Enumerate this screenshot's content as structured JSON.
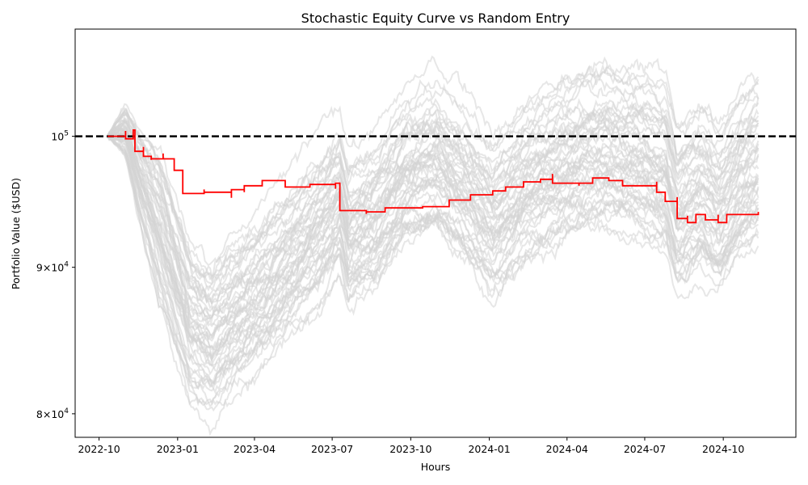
{
  "chart_data": {
    "type": "line",
    "title": "Stochastic Equity Curve vs Random Entry",
    "xlabel": "Hours",
    "ylabel": "Portfolio Value ($USD)",
    "yscale": "log",
    "ylim": [
      78500,
      109000
    ],
    "xlim": [
      "2022-09-03",
      "2024-12-25"
    ],
    "grid": false,
    "x_ticks": [
      "2022-10",
      "2023-01",
      "2023-04",
      "2023-07",
      "2023-10",
      "2024-01",
      "2024-04",
      "2024-07",
      "2024-10"
    ],
    "y_ticks": [
      {
        "value": 80000,
        "label_base": "8",
        "label_exp": "4"
      },
      {
        "value": 90000,
        "label_base": "9",
        "label_exp": "4"
      },
      {
        "value": 100000,
        "label_base": "10",
        "label_exp": "5"
      }
    ],
    "reference_line": {
      "value": 100000,
      "style": "dashed",
      "color": "#000000"
    },
    "colors": {
      "strategy": "#ff0000",
      "random": "#d3d3d3"
    },
    "series": [
      {
        "role": "strategy",
        "color": "#ff0000",
        "points": [
          [
            "2022-10-11",
            100000
          ],
          [
            "2022-11-01",
            99800
          ],
          [
            "2022-11-10",
            100500
          ],
          [
            "2022-11-12",
            98800
          ],
          [
            "2022-11-22",
            98400
          ],
          [
            "2022-12-01",
            98200
          ],
          [
            "2022-12-15",
            98200
          ],
          [
            "2022-12-28",
            97300
          ],
          [
            "2023-01-07",
            95500
          ],
          [
            "2023-02-01",
            95600
          ],
          [
            "2023-03-05",
            95800
          ],
          [
            "2023-03-20",
            96100
          ],
          [
            "2023-04-10",
            96500
          ],
          [
            "2023-05-07",
            96000
          ],
          [
            "2023-06-05",
            96200
          ],
          [
            "2023-07-05",
            96300
          ],
          [
            "2023-07-10",
            94200
          ],
          [
            "2023-08-10",
            94100
          ],
          [
            "2023-09-01",
            94400
          ],
          [
            "2023-10-15",
            94500
          ],
          [
            "2023-11-15",
            95000
          ],
          [
            "2023-12-10",
            95400
          ],
          [
            "2024-01-05",
            95700
          ],
          [
            "2024-01-20",
            96000
          ],
          [
            "2024-02-10",
            96400
          ],
          [
            "2024-03-01",
            96600
          ],
          [
            "2024-03-15",
            96300
          ],
          [
            "2024-04-15",
            96300
          ],
          [
            "2024-05-01",
            96700
          ],
          [
            "2024-05-20",
            96500
          ],
          [
            "2024-06-05",
            96100
          ],
          [
            "2024-07-15",
            95600
          ],
          [
            "2024-07-25",
            94900
          ],
          [
            "2024-08-08",
            93600
          ],
          [
            "2024-08-20",
            93300
          ],
          [
            "2024-08-30",
            93900
          ],
          [
            "2024-09-10",
            93500
          ],
          [
            "2024-09-25",
            93300
          ],
          [
            "2024-10-05",
            93900
          ],
          [
            "2024-11-11",
            94100
          ]
        ]
      },
      {
        "role": "random-entry",
        "color": "#d3d3d3",
        "count": 50,
        "points": [
          [
            "2022-10-11",
            100000
          ],
          [
            "2022-11-01",
            100500
          ],
          [
            "2022-11-15",
            97500
          ],
          [
            "2022-12-15",
            92500
          ],
          [
            "2023-01-15",
            86500
          ],
          [
            "2023-02-10",
            85200
          ],
          [
            "2023-03-10",
            87000
          ],
          [
            "2023-04-10",
            88500
          ],
          [
            "2023-05-15",
            91000
          ],
          [
            "2023-06-20",
            93500
          ],
          [
            "2023-07-10",
            95500
          ],
          [
            "2023-07-20",
            92800
          ],
          [
            "2023-08-20",
            94000
          ],
          [
            "2023-09-25",
            97500
          ],
          [
            "2023-11-01",
            98500
          ],
          [
            "2023-12-10",
            96000
          ],
          [
            "2024-01-05",
            94000
          ],
          [
            "2024-02-10",
            96500
          ],
          [
            "2024-03-15",
            98000
          ],
          [
            "2024-04-15",
            99000
          ],
          [
            "2024-05-15",
            99500
          ],
          [
            "2024-06-20",
            99000
          ],
          [
            "2024-07-25",
            98000
          ],
          [
            "2024-08-08",
            94500
          ],
          [
            "2024-09-05",
            96000
          ],
          [
            "2024-09-25",
            94500
          ],
          [
            "2024-10-20",
            97000
          ],
          [
            "2024-11-11",
            98500
          ]
        ]
      }
    ]
  }
}
